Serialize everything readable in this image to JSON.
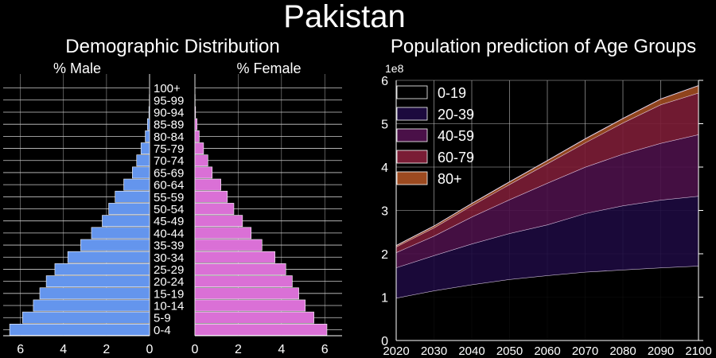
{
  "figure_title": "Pakistan",
  "chart_data": [
    {
      "type": "bar",
      "orientation": "horizontal",
      "title": "Demographic Distribution",
      "age_groups": [
        "0-4",
        "5-9",
        "10-14",
        "15-19",
        "20-24",
        "25-29",
        "30-34",
        "35-39",
        "40-44",
        "45-49",
        "50-54",
        "55-59",
        "60-64",
        "65-69",
        "70-74",
        "75-79",
        "80-84",
        "85-89",
        "90-94",
        "95-99",
        "100+"
      ],
      "series": [
        {
          "name": "% Male",
          "color": "#6495ED",
          "values": [
            6.5,
            5.9,
            5.4,
            5.1,
            4.8,
            4.4,
            3.8,
            3.2,
            2.7,
            2.2,
            1.9,
            1.6,
            1.2,
            0.8,
            0.6,
            0.4,
            0.2,
            0.1,
            0.03,
            0.01,
            0.0
          ]
        },
        {
          "name": "% Female",
          "color": "#DA70D6",
          "values": [
            6.1,
            5.5,
            5.1,
            4.8,
            4.5,
            4.2,
            3.7,
            3.1,
            2.6,
            2.2,
            1.8,
            1.5,
            1.2,
            0.8,
            0.6,
            0.4,
            0.2,
            0.1,
            0.03,
            0.01,
            0.0
          ]
        }
      ],
      "male_xticks": [
        6,
        4,
        2,
        0
      ],
      "female_xticks": [
        0,
        2,
        4,
        6
      ],
      "xlim": [
        0,
        6.8
      ]
    },
    {
      "type": "area",
      "stacked": true,
      "title": "Population prediction of Age Groups",
      "y_multiplier_label": "1e8",
      "x": [
        2020,
        2030,
        2040,
        2050,
        2060,
        2070,
        2080,
        2090,
        2100
      ],
      "ylim": [
        0,
        6
      ],
      "yticks": [
        0,
        1,
        2,
        3,
        4,
        5,
        6
      ],
      "legend_position": "top-left",
      "grid": true,
      "series": [
        {
          "name": "0-19",
          "color": "#000000",
          "values": [
            0.98,
            1.15,
            1.29,
            1.41,
            1.5,
            1.58,
            1.63,
            1.68,
            1.72
          ]
        },
        {
          "name": "20-39",
          "color": "#1C0A3E",
          "values": [
            0.7,
            0.81,
            0.94,
            1.06,
            1.17,
            1.35,
            1.48,
            1.56,
            1.61
          ]
        },
        {
          "name": "40-59",
          "color": "#4A1048",
          "values": [
            0.35,
            0.45,
            0.62,
            0.78,
            0.96,
            1.07,
            1.19,
            1.31,
            1.42
          ]
        },
        {
          "name": "60-79",
          "color": "#7A1C35",
          "values": [
            0.13,
            0.19,
            0.26,
            0.35,
            0.45,
            0.56,
            0.72,
            0.89,
            0.96
          ]
        },
        {
          "name": "80+",
          "color": "#9C4A20",
          "values": [
            0.03,
            0.04,
            0.05,
            0.06,
            0.07,
            0.09,
            0.1,
            0.13,
            0.17
          ]
        }
      ]
    }
  ]
}
